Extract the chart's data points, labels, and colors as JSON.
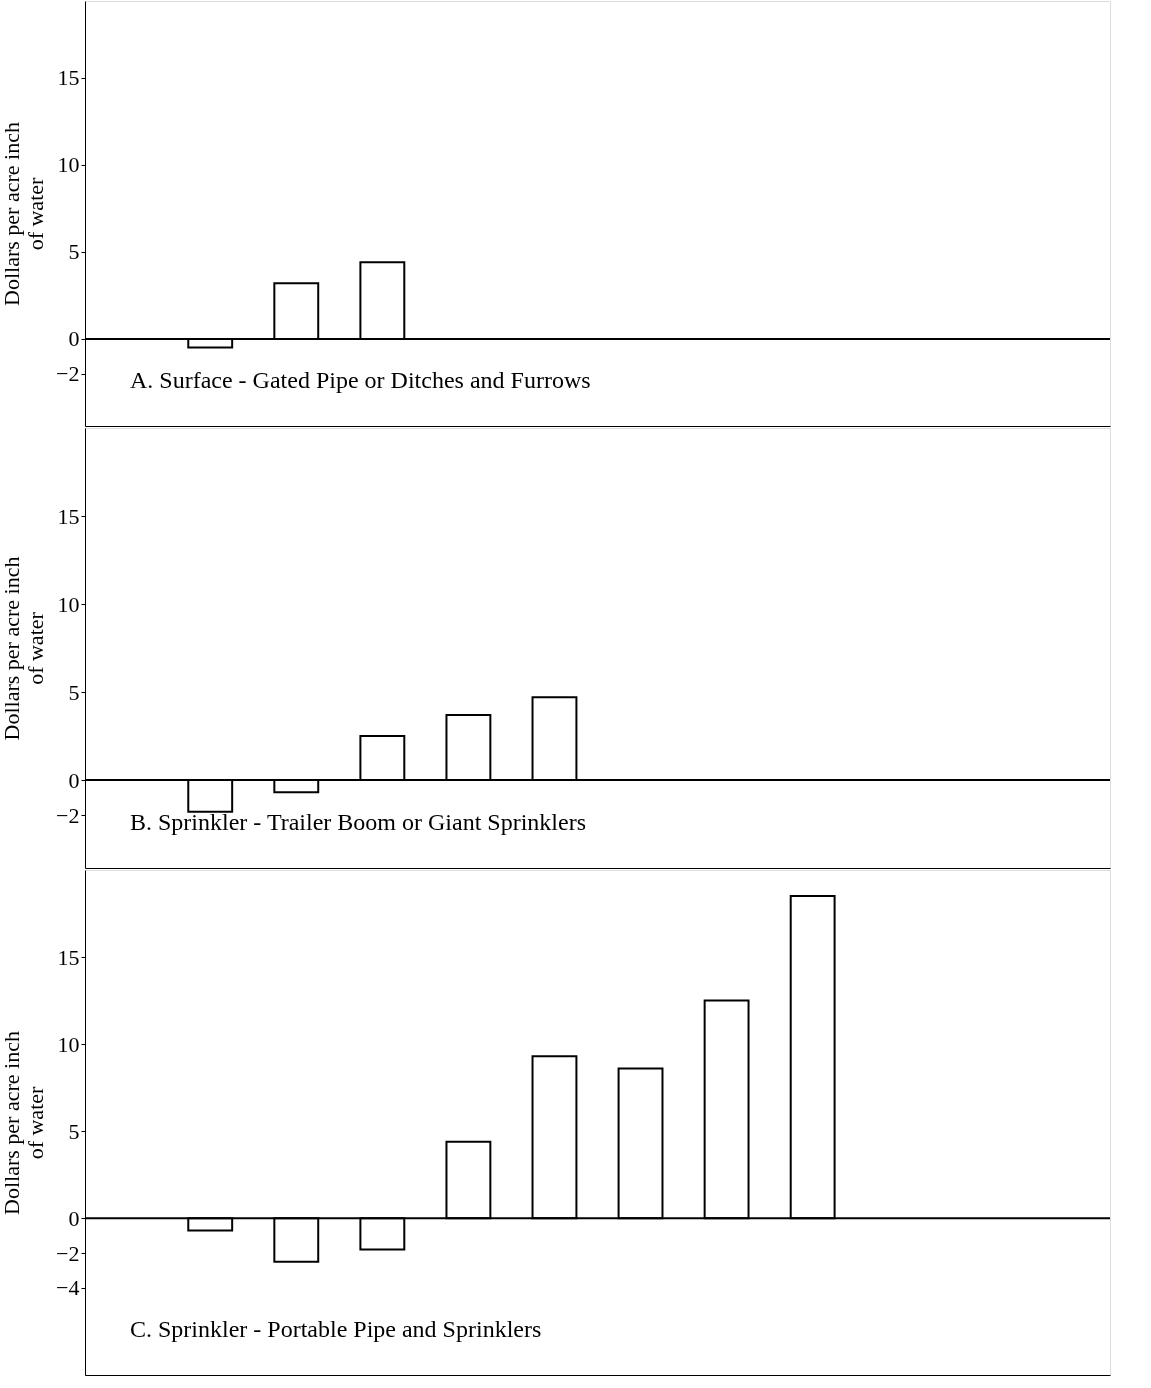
{
  "chart_data": [
    {
      "type": "bar",
      "ylabel": "Dollars per acre inch\nof water",
      "annotations": [
        "A.  Surface - Gated Pipe or Ditches and Furrows"
      ],
      "categories": [
        null,
        null,
        null,
        null,
        null,
        null,
        null,
        null,
        null,
        null,
        null,
        null
      ],
      "values": [
        null,
        -0.5,
        3.2,
        4.4,
        null,
        null,
        null,
        null,
        null,
        null,
        null,
        null
      ],
      "color": "#ffffff",
      "ylim": [
        -5,
        19.4
      ],
      "yticks": [
        -2,
        0,
        5,
        10,
        15
      ],
      "grid": false,
      "tick_labels": "y",
      "ref_lines": [
        {
          "axis": "y",
          "value": 0
        }
      ]
    },
    {
      "type": "bar",
      "ylabel": "Dollars per acre inch\nof water",
      "annotations": [
        "B.  Sprinkler - Trailer Boom or Giant Sprinklers"
      ],
      "categories": [
        null,
        null,
        null,
        null,
        null,
        null,
        null,
        null,
        null,
        null,
        null,
        null
      ],
      "values": [
        null,
        -1.8,
        -0.7,
        2.5,
        3.7,
        4.7,
        null,
        null,
        null,
        null,
        null,
        null
      ],
      "color": "#ffffff",
      "ylim": [
        -5,
        20
      ],
      "yticks": [
        -2,
        0,
        5,
        10,
        15
      ],
      "grid": false,
      "tick_labels": "y",
      "ref_lines": [
        {
          "axis": "y",
          "value": 0
        }
      ]
    },
    {
      "type": "bar",
      "ylabel": "Dollars per acre inch\nof water",
      "annotations": [
        "C.  Sprinkler - Portable Pipe and Sprinklers"
      ],
      "categories": [
        null,
        null,
        null,
        null,
        null,
        null,
        null,
        null,
        null,
        null,
        null,
        null
      ],
      "values": [
        null,
        -0.7,
        -2.5,
        -1.8,
        4.4,
        9.3,
        8.6,
        12.5,
        18.5,
        null,
        null,
        null
      ],
      "color": "#ffffff",
      "ylim": [
        -9,
        20
      ],
      "yticks": [
        -4,
        -2,
        0,
        5,
        10,
        15
      ],
      "grid": false,
      "tick_labels": "y",
      "ref_lines": [
        {
          "axis": "y",
          "value": 0
        }
      ]
    }
  ]
}
